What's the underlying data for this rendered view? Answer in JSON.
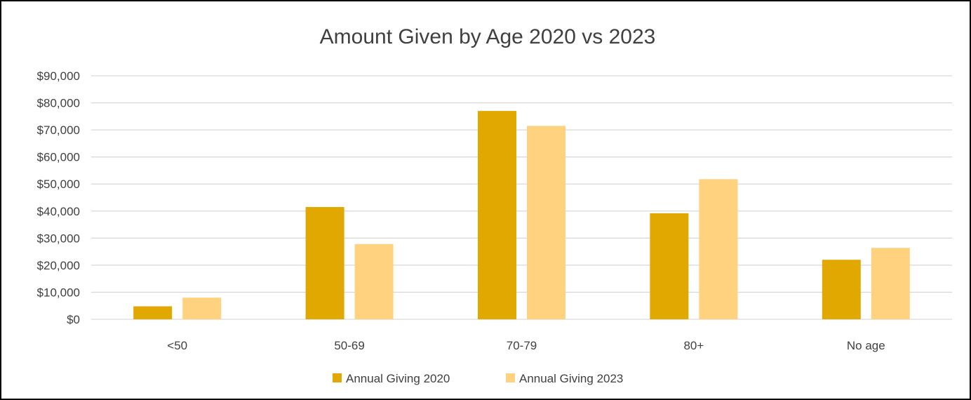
{
  "chart_data": {
    "type": "bar",
    "title": "Amount Given by Age 2020 vs 2023",
    "xlabel": "",
    "ylabel": "",
    "categories": [
      "<50",
      "50-69",
      "70-79",
      "80+",
      "No age"
    ],
    "series": [
      {
        "name": "Annual Giving 2020",
        "color": "#E0A800",
        "values": [
          4800,
          41500,
          77000,
          39200,
          22000
        ]
      },
      {
        "name": "Annual Giving 2023",
        "color": "#FFD27F",
        "values": [
          8000,
          27800,
          71500,
          51800,
          26400
        ]
      }
    ],
    "ylim": [
      0,
      90000
    ],
    "yticks": [
      0,
      10000,
      20000,
      30000,
      40000,
      50000,
      60000,
      70000,
      80000,
      90000
    ],
    "ytick_labels": [
      "$0",
      "$10,000",
      "$20,000",
      "$30,000",
      "$40,000",
      "$50,000",
      "$60,000",
      "$70,000",
      "$80,000",
      "$90,000"
    ],
    "grid": true,
    "legend_position": "bottom",
    "gridline_color": "#D9D9D9",
    "text_color": "#404040"
  }
}
